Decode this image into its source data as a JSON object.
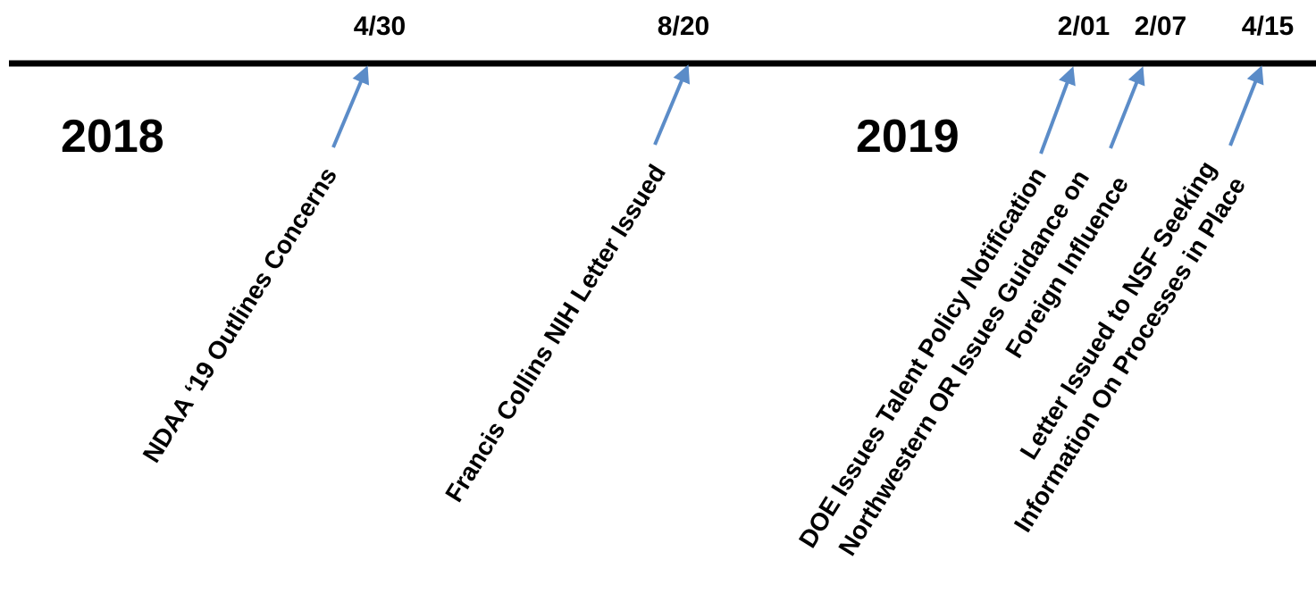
{
  "timeline": {
    "years": [
      {
        "label": "2018"
      },
      {
        "label": "2019"
      }
    ],
    "events": [
      {
        "date": "4/30",
        "lines": [
          "NDAA ‘19 Outlines Concerns"
        ]
      },
      {
        "date": "8/20",
        "lines": [
          "Francis Collins NIH Letter Issued"
        ]
      },
      {
        "date": "2/01",
        "lines": [
          "DOE Issues Talent Policy Notification"
        ]
      },
      {
        "date": "2/07",
        "lines": [
          "Northwestern OR Issues Guidance on",
          "Foreign Influence"
        ]
      },
      {
        "date": "4/15",
        "lines": [
          "Letter Issued to NSF Seeking",
          "Information On Processes in Place"
        ]
      }
    ],
    "colors": {
      "axis": "#000000",
      "arrow": "#5b8cc8",
      "text": "#000000"
    }
  }
}
